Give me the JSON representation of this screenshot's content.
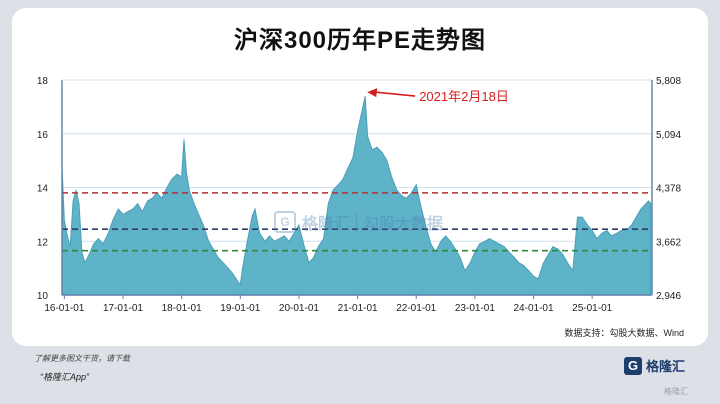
{
  "header": {
    "title": "沪深300历年PE走势图"
  },
  "footer": {
    "source": "数据支持：勾股大数据、Wind",
    "promo_line1": "了解更多图文干货，请下载",
    "promo_line2": "“格隆汇App”",
    "logo_mark": "G",
    "logo_text": "格隆汇",
    "corner_watermark": "格隆汇"
  },
  "watermark": {
    "brand": "格隆汇",
    "brand2": "勾股大数据"
  },
  "colors": {
    "area_fill": "#5fb3c8",
    "area_stroke": "#4b9fb6",
    "annotation": "#d62020",
    "line_red": "#b03030",
    "line_navy": "#2e3c6a",
    "line_green": "#2f8a3a",
    "axis": "#5b7fa6"
  },
  "chart_data": {
    "type": "area",
    "title": "沪深300历年PE走势图",
    "xlabel": "",
    "ylabel": "",
    "ylim": [
      10,
      18
    ],
    "yticks": [
      10,
      12,
      14,
      16,
      18
    ],
    "y2ticks": [
      "2,946",
      "3,662",
      "4,378",
      "5,094",
      "5,808"
    ],
    "xticks": [
      {
        "label": "16-01-01",
        "x": 2016.0
      },
      {
        "label": "17-01-01",
        "x": 2017.0
      },
      {
        "label": "18-01-01",
        "x": 2018.0
      },
      {
        "label": "19-01-01",
        "x": 2019.0
      },
      {
        "label": "20-01-01",
        "x": 2020.0
      },
      {
        "label": "21-01-01",
        "x": 2021.0
      },
      {
        "label": "22-01-01",
        "x": 2022.0
      },
      {
        "label": "23-01-01",
        "x": 2023.0
      },
      {
        "label": "24-01-01",
        "x": 2024.0
      },
      {
        "label": "25-01-01",
        "x": 2025.0
      }
    ],
    "xlim": [
      2015.96,
      2026.02
    ],
    "grid": true,
    "reference_lines": [
      {
        "value": 13.8,
        "color": "#b03030"
      },
      {
        "value": 12.45,
        "color": "#2e3c6a"
      },
      {
        "value": 11.65,
        "color": "#2f8a3a"
      }
    ],
    "annotation": {
      "text": "2021年2月18日",
      "x": 2021.13,
      "y": 17.55
    },
    "series": [
      {
        "points": [
          [
            2015.96,
            14.8
          ],
          [
            2016.0,
            12.8
          ],
          [
            2016.05,
            12.2
          ],
          [
            2016.1,
            11.8
          ],
          [
            2016.15,
            13.5
          ],
          [
            2016.2,
            13.9
          ],
          [
            2016.25,
            13.4
          ],
          [
            2016.3,
            11.6
          ],
          [
            2016.35,
            11.2
          ],
          [
            2016.42,
            11.5
          ],
          [
            2016.5,
            11.9
          ],
          [
            2016.58,
            12.1
          ],
          [
            2016.66,
            11.9
          ],
          [
            2016.75,
            12.3
          ],
          [
            2016.83,
            12.8
          ],
          [
            2016.92,
            13.2
          ],
          [
            2017.0,
            13.0
          ],
          [
            2017.08,
            13.1
          ],
          [
            2017.17,
            13.2
          ],
          [
            2017.25,
            13.4
          ],
          [
            2017.33,
            13.1
          ],
          [
            2017.42,
            13.5
          ],
          [
            2017.5,
            13.6
          ],
          [
            2017.58,
            13.8
          ],
          [
            2017.66,
            13.6
          ],
          [
            2017.75,
            14.0
          ],
          [
            2017.83,
            14.3
          ],
          [
            2017.92,
            14.5
          ],
          [
            2018.0,
            14.4
          ],
          [
            2018.04,
            15.8
          ],
          [
            2018.08,
            14.6
          ],
          [
            2018.13,
            13.9
          ],
          [
            2018.21,
            13.4
          ],
          [
            2018.29,
            13.0
          ],
          [
            2018.37,
            12.6
          ],
          [
            2018.46,
            12.0
          ],
          [
            2018.54,
            11.7
          ],
          [
            2018.62,
            11.4
          ],
          [
            2018.71,
            11.2
          ],
          [
            2018.79,
            11.0
          ],
          [
            2018.87,
            10.8
          ],
          [
            2018.96,
            10.5
          ],
          [
            2019.0,
            10.4
          ],
          [
            2019.04,
            11.0
          ],
          [
            2019.12,
            12.0
          ],
          [
            2019.2,
            12.9
          ],
          [
            2019.25,
            13.2
          ],
          [
            2019.33,
            12.3
          ],
          [
            2019.42,
            12.0
          ],
          [
            2019.5,
            12.2
          ],
          [
            2019.58,
            12.0
          ],
          [
            2019.67,
            12.1
          ],
          [
            2019.75,
            12.2
          ],
          [
            2019.83,
            12.0
          ],
          [
            2019.92,
            12.3
          ],
          [
            2020.0,
            12.6
          ],
          [
            2020.08,
            11.9
          ],
          [
            2020.17,
            11.2
          ],
          [
            2020.25,
            11.4
          ],
          [
            2020.33,
            11.8
          ],
          [
            2020.42,
            12.1
          ],
          [
            2020.5,
            13.4
          ],
          [
            2020.58,
            13.9
          ],
          [
            2020.67,
            14.1
          ],
          [
            2020.75,
            14.3
          ],
          [
            2020.83,
            14.7
          ],
          [
            2020.92,
            15.1
          ],
          [
            2021.0,
            16.1
          ],
          [
            2021.08,
            16.9
          ],
          [
            2021.13,
            17.4
          ],
          [
            2021.17,
            15.9
          ],
          [
            2021.25,
            15.4
          ],
          [
            2021.33,
            15.5
          ],
          [
            2021.42,
            15.3
          ],
          [
            2021.5,
            15.0
          ],
          [
            2021.58,
            14.4
          ],
          [
            2021.67,
            13.9
          ],
          [
            2021.75,
            13.7
          ],
          [
            2021.83,
            13.6
          ],
          [
            2021.92,
            13.8
          ],
          [
            2022.0,
            14.1
          ],
          [
            2022.08,
            13.3
          ],
          [
            2022.17,
            12.5
          ],
          [
            2022.25,
            11.9
          ],
          [
            2022.33,
            11.6
          ],
          [
            2022.42,
            12.0
          ],
          [
            2022.5,
            12.2
          ],
          [
            2022.58,
            12.0
          ],
          [
            2022.67,
            11.7
          ],
          [
            2022.75,
            11.4
          ],
          [
            2022.83,
            10.9
          ],
          [
            2022.92,
            11.2
          ],
          [
            2023.0,
            11.6
          ],
          [
            2023.08,
            11.9
          ],
          [
            2023.17,
            12.0
          ],
          [
            2023.25,
            12.1
          ],
          [
            2023.33,
            12.0
          ],
          [
            2023.42,
            11.9
          ],
          [
            2023.5,
            11.8
          ],
          [
            2023.58,
            11.6
          ],
          [
            2023.67,
            11.4
          ],
          [
            2023.75,
            11.2
          ],
          [
            2023.83,
            11.1
          ],
          [
            2023.92,
            10.9
          ],
          [
            2024.0,
            10.7
          ],
          [
            2024.08,
            10.6
          ],
          [
            2024.17,
            11.2
          ],
          [
            2024.25,
            11.5
          ],
          [
            2024.33,
            11.8
          ],
          [
            2024.42,
            11.7
          ],
          [
            2024.5,
            11.5
          ],
          [
            2024.58,
            11.2
          ],
          [
            2024.67,
            10.9
          ],
          [
            2024.75,
            12.9
          ],
          [
            2024.83,
            12.9
          ],
          [
            2024.92,
            12.6
          ],
          [
            2025.0,
            12.4
          ],
          [
            2025.08,
            12.1
          ],
          [
            2025.17,
            12.3
          ],
          [
            2025.25,
            12.4
          ],
          [
            2025.33,
            12.2
          ],
          [
            2025.42,
            12.3
          ],
          [
            2025.5,
            12.4
          ],
          [
            2025.58,
            12.4
          ],
          [
            2025.67,
            12.6
          ],
          [
            2025.75,
            12.9
          ],
          [
            2025.83,
            13.2
          ],
          [
            2025.92,
            13.4
          ],
          [
            2025.96,
            13.5
          ],
          [
            2026.0,
            13.4
          ]
        ]
      }
    ]
  }
}
